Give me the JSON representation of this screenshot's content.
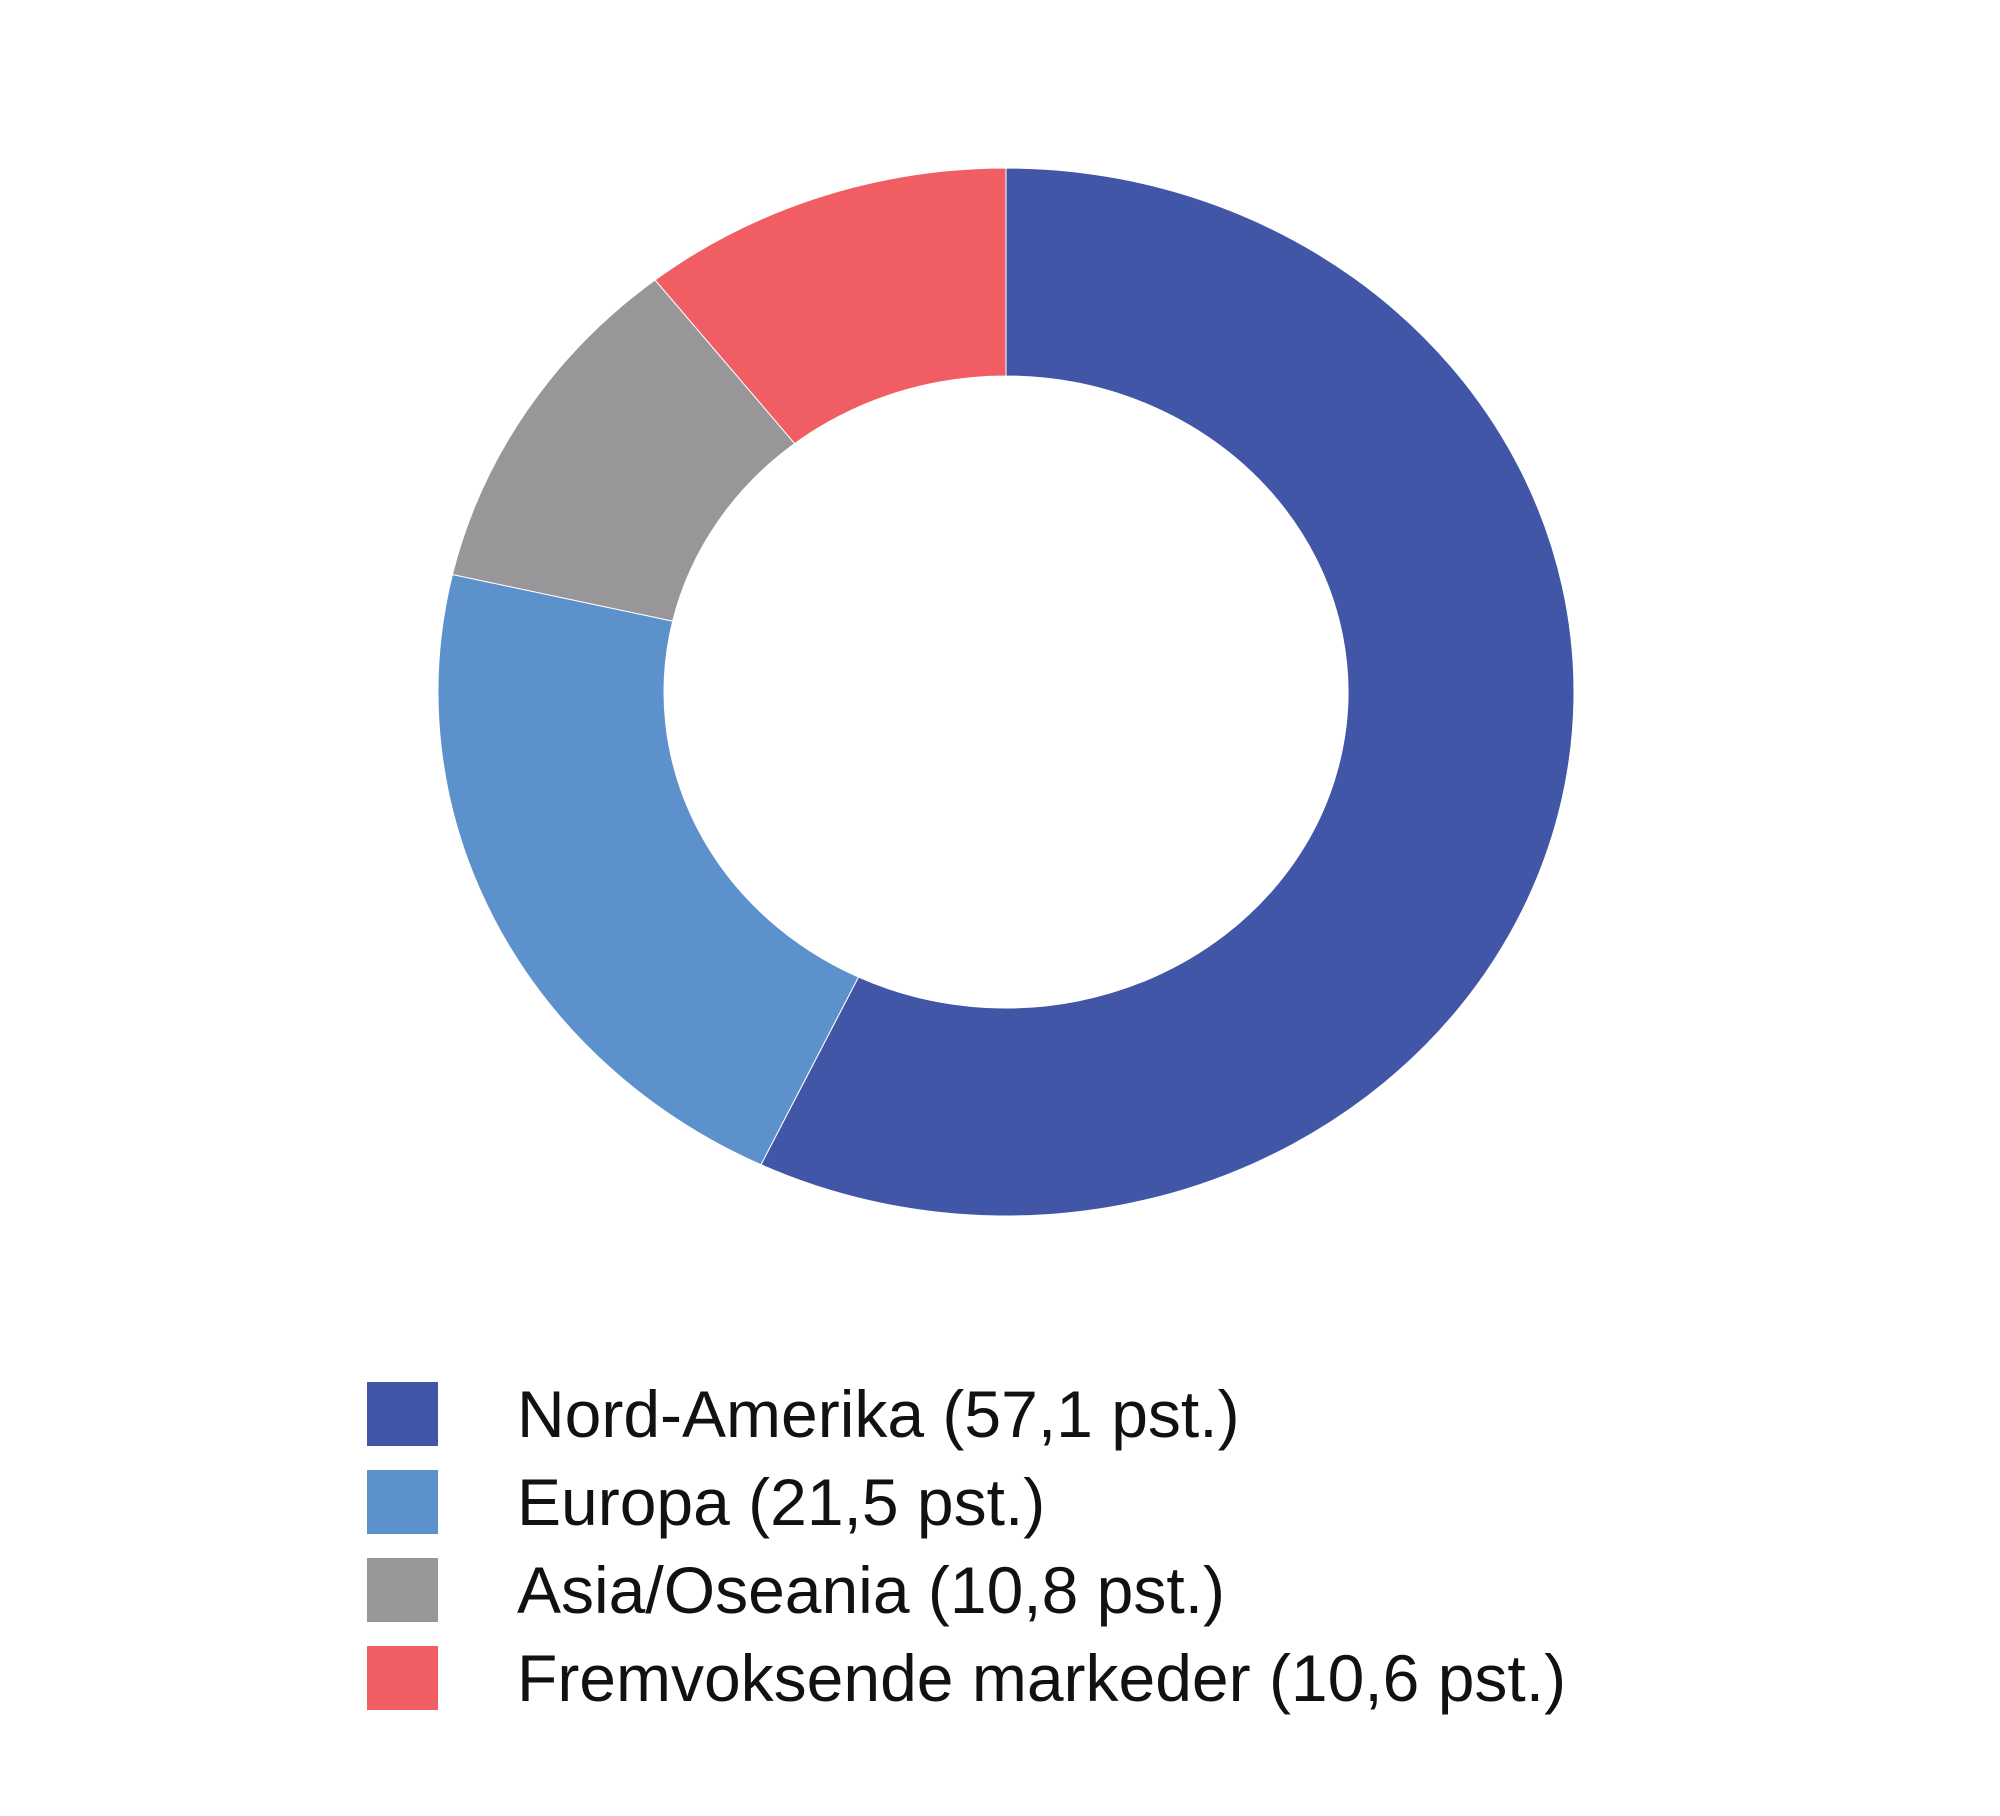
{
  "chart_data": {
    "type": "pie",
    "variant": "donut",
    "start_angle": "top, clockwise",
    "legend_position": "bottom",
    "series": [
      {
        "name": "Nord-Amerika",
        "value": 57.1,
        "color": "#4256a7",
        "label": "Nord-Amerika (57,1 pst.)"
      },
      {
        "name": "Europa",
        "value": 21.5,
        "color": "#5d91cb",
        "label": "Europa (21,5 pst.)"
      },
      {
        "name": "Asia/Oseania",
        "value": 10.8,
        "color": "#989699",
        "label": "Asia/Oseania (10,8 pst.)"
      },
      {
        "name": "Fremvoksende markeder",
        "value": 10.6,
        "color": "#f05e64",
        "label": "Fremvoksende markeder (10,6 pst.)"
      }
    ]
  }
}
